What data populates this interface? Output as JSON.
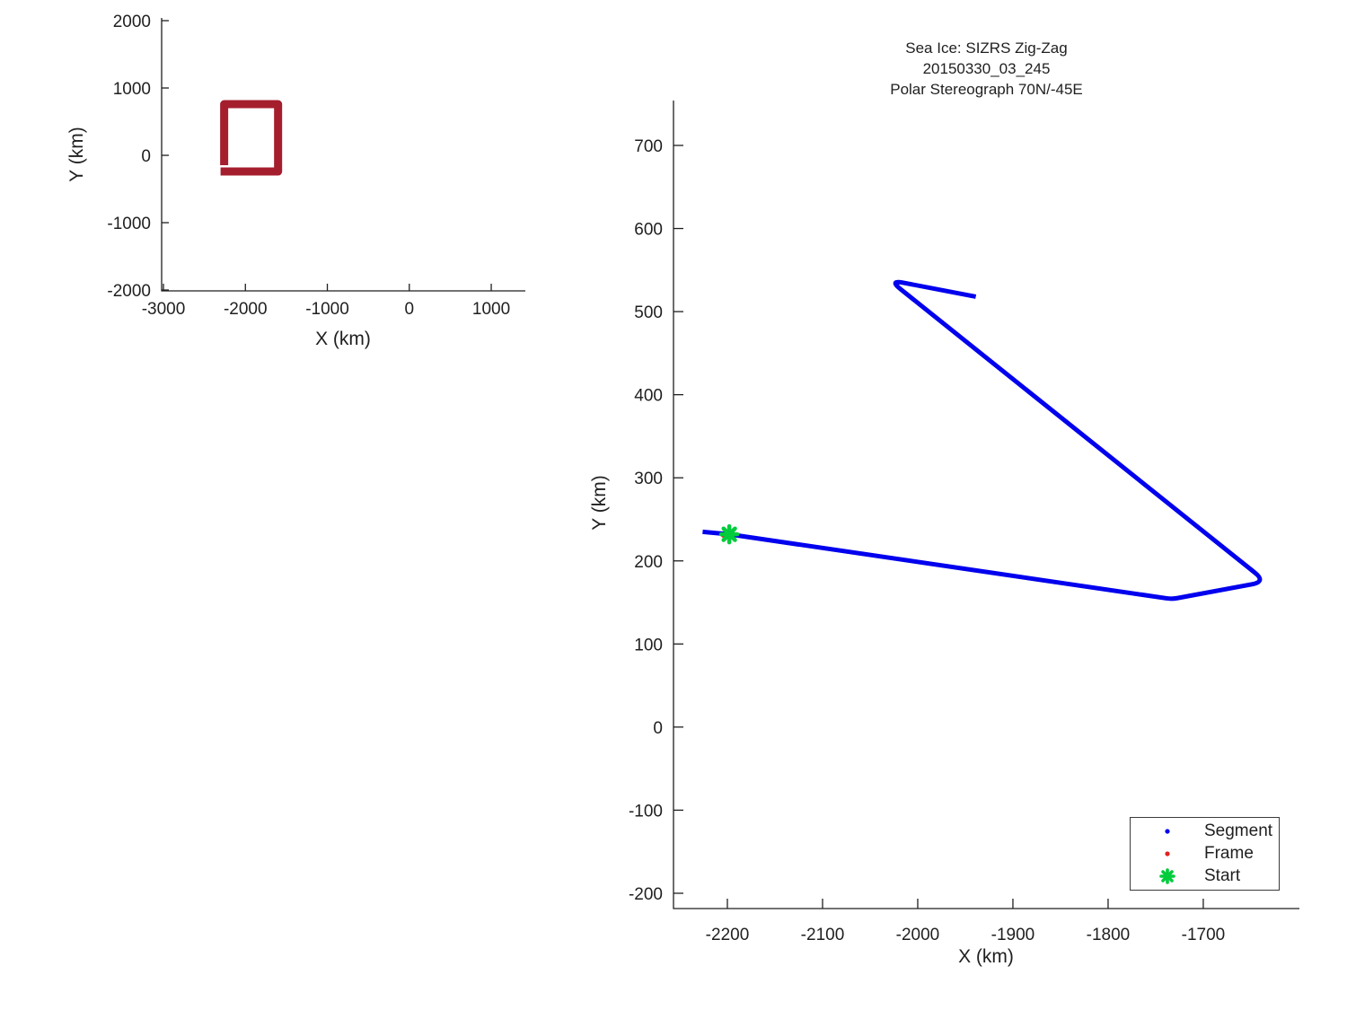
{
  "figure": {
    "background": "#ffffff",
    "axis_color": "#1f1f1f",
    "title_lines": [
      "Sea Ice: SIZRS Zig-Zag",
      "20150330_03_245",
      "Polar Stereograph 70N/-45E"
    ]
  },
  "legend": {
    "entries": [
      {
        "label": "Segment",
        "marker": "dot",
        "color": "#0000ee"
      },
      {
        "label": "Frame",
        "marker": "dot",
        "color": "#e02222"
      },
      {
        "label": "Start",
        "marker": "asterisk",
        "color": "#00cc3c"
      }
    ]
  },
  "chart_data": [
    {
      "id": "overview",
      "type": "line",
      "title": "",
      "xlabel": "X (km)",
      "ylabel": "Y (km)",
      "xlim": [
        -3022,
        1416
      ],
      "ylim": [
        -2013,
        2040
      ],
      "xticks": [
        -3000,
        -2000,
        -1000,
        0,
        1000
      ],
      "yticks": [
        -2000,
        -1000,
        0,
        1000,
        2000
      ],
      "grid": false,
      "series": [
        {
          "name": "flight-track",
          "color": "#a51e2e",
          "linewidth": 9,
          "x": [
            -2259,
            -2259,
            -1601,
            -1601,
            -2303
          ],
          "y": [
            -147,
            760,
            760,
            -240,
            -240
          ]
        }
      ]
    },
    {
      "id": "zigzag",
      "type": "line",
      "title": "Sea Ice: SIZRS Zig-Zag 20150330_03_245 Polar Stereograph 70N/-45E",
      "xlabel": "X (km)",
      "ylabel": "Y (km)",
      "xlim": [
        -2256.6,
        -1599
      ],
      "ylim": [
        -218.4,
        754
      ],
      "xticks": [
        -2200,
        -2100,
        -2000,
        -1900,
        -1800,
        -1700
      ],
      "yticks": [
        -200,
        -100,
        0,
        100,
        200,
        300,
        400,
        500,
        600,
        700
      ],
      "grid": false,
      "legend_position": "bottom-right",
      "series": [
        {
          "name": "Segment",
          "color": "#0000ee",
          "linewidth": 5,
          "x": [
            -2226,
            -2198,
            -1733,
            -1634,
            -2030,
            -1939
          ],
          "y": [
            235,
            232,
            154,
            175,
            538,
            518
          ],
          "corner_radius_px": [
            0,
            0,
            6,
            16,
            16,
            0
          ]
        }
      ],
      "markers": [
        {
          "name": "Frame",
          "shape": "dot",
          "color": "#e02222",
          "x": -2204,
          "y": 231,
          "size": 3
        },
        {
          "name": "Start",
          "shape": "asterisk",
          "color": "#00cc3c",
          "x": -2198,
          "y": 232,
          "size": 9
        }
      ]
    }
  ]
}
